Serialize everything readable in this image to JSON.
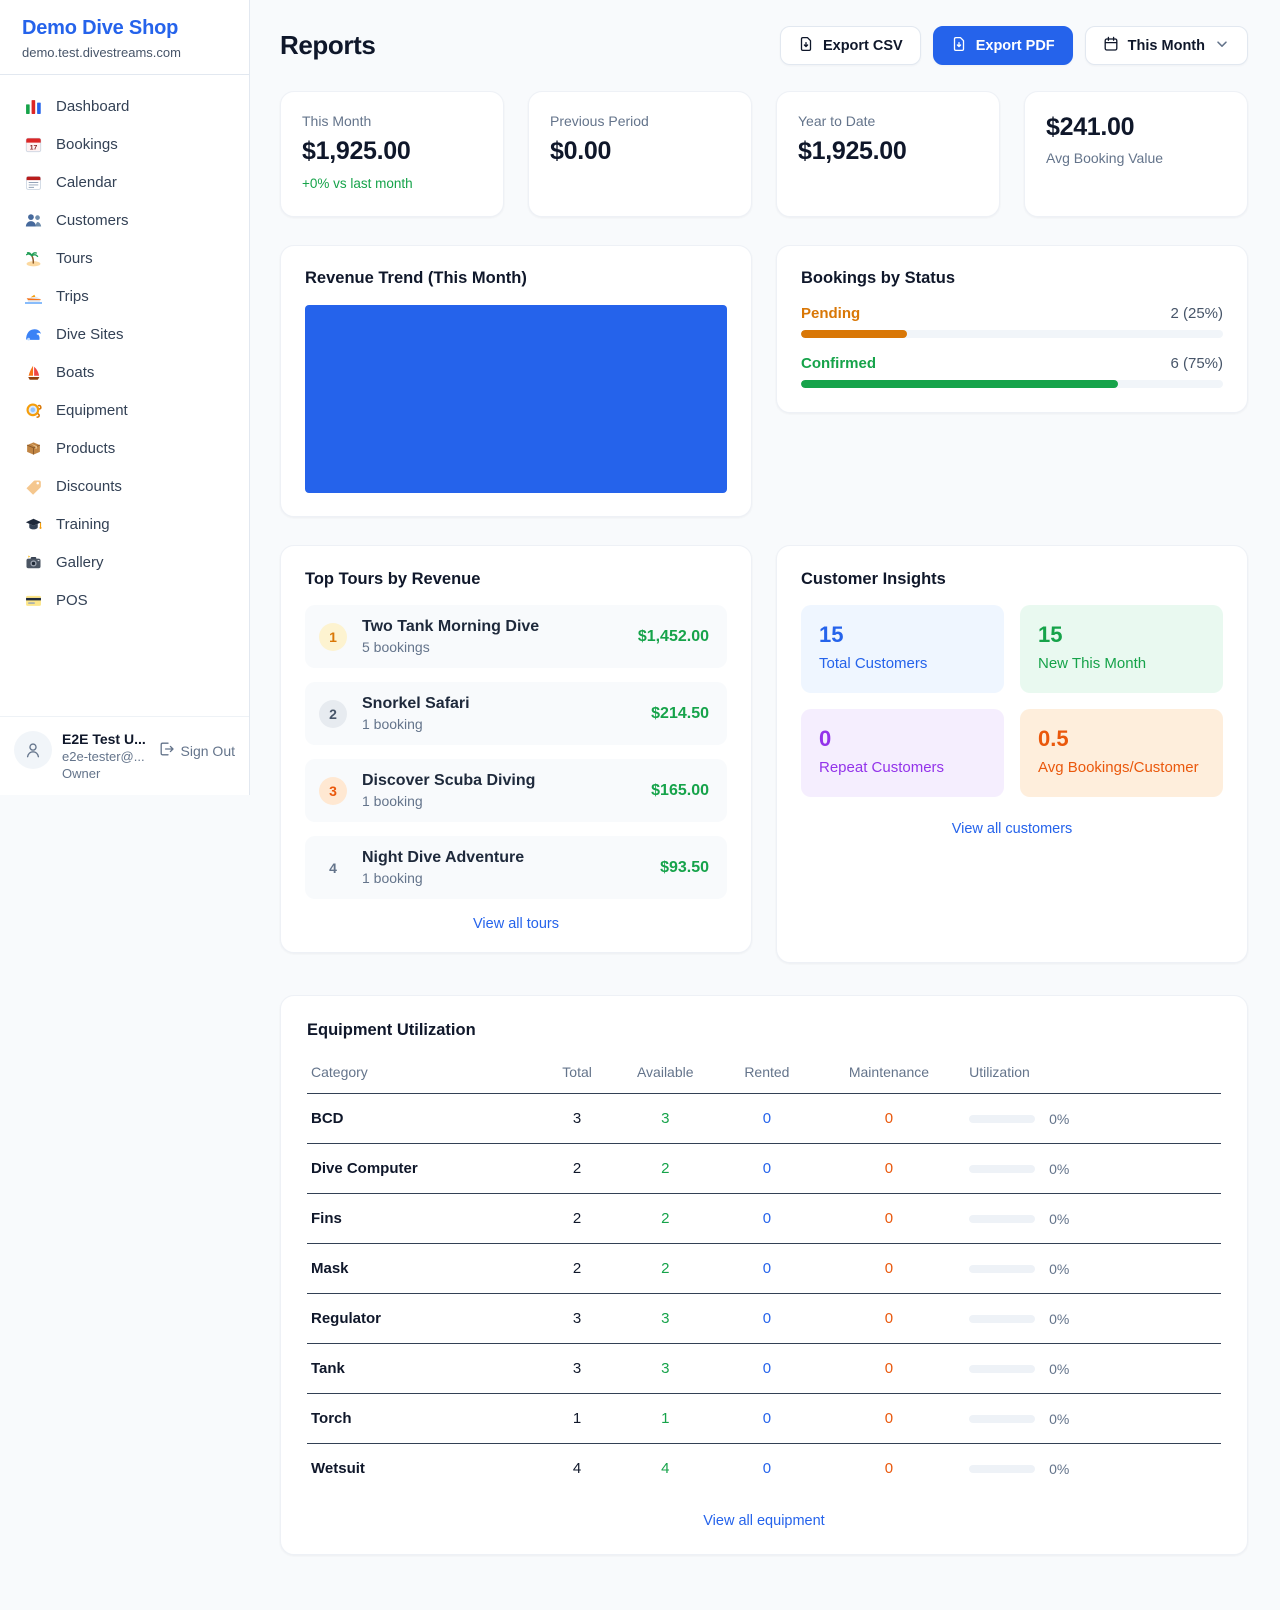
{
  "colors": {
    "brand_blue": "#2563eb",
    "green": "#16a34a",
    "amber": "#d97706",
    "orange": "#ea580c",
    "purple": "#9333ea",
    "chart_blue": "#2563eb",
    "text_dark": "#0f172a",
    "text_muted": "#64748b"
  },
  "sidebar": {
    "title": "Demo Dive Shop",
    "subtitle": "demo.test.divestreams.com",
    "items": [
      {
        "icon": "bar-chart",
        "label": "Dashboard"
      },
      {
        "icon": "calendar-date",
        "label": "Bookings"
      },
      {
        "icon": "tear-off-calendar",
        "label": "Calendar"
      },
      {
        "icon": "people",
        "label": "Customers"
      },
      {
        "icon": "palm-island",
        "label": "Tours"
      },
      {
        "icon": "speedboat",
        "label": "Trips"
      },
      {
        "icon": "wave",
        "label": "Dive Sites"
      },
      {
        "icon": "sailboat",
        "label": "Boats"
      },
      {
        "icon": "diving-mask",
        "label": "Equipment"
      },
      {
        "icon": "package",
        "label": "Products"
      },
      {
        "icon": "tag",
        "label": "Discounts"
      },
      {
        "icon": "graduation-cap",
        "label": "Training"
      },
      {
        "icon": "camera-flash",
        "label": "Gallery"
      },
      {
        "icon": "credit-card",
        "label": "POS"
      }
    ],
    "user": {
      "name": "E2E Test U...",
      "email": "e2e-tester@...",
      "role": "Owner",
      "sign_out": "Sign Out"
    }
  },
  "header": {
    "title": "Reports",
    "export_csv": "Export CSV",
    "export_pdf": "Export PDF",
    "period": "This Month"
  },
  "stats": [
    {
      "label": "This Month",
      "value": "$1,925.00",
      "delta": "+0% vs last month"
    },
    {
      "label": "Previous Period",
      "value": "$0.00"
    },
    {
      "label": "Year to Date",
      "value": "$1,925.00"
    },
    {
      "label": "Avg Booking Value",
      "value": "$241.00"
    }
  ],
  "revenue_trend": {
    "title": "Revenue Trend (This Month)",
    "chart_color": "#2563eb"
  },
  "bookings_by_status": {
    "title": "Bookings by Status",
    "rows": [
      {
        "label": "Pending",
        "display": "2 (25%)",
        "count": 2,
        "width": "25%"
      },
      {
        "label": "Confirmed",
        "display": "6 (75%)",
        "count": 6,
        "width": "75%"
      }
    ]
  },
  "top_tours": {
    "title": "Top Tours by Revenue",
    "items": [
      {
        "rank": "1",
        "name": "Two Tank Morning Dive",
        "bookings": "5 bookings",
        "revenue": "$1,452.00"
      },
      {
        "rank": "2",
        "name": "Snorkel Safari",
        "bookings": "1 booking",
        "revenue": "$214.50"
      },
      {
        "rank": "3",
        "name": "Discover Scuba Diving",
        "bookings": "1 booking",
        "revenue": "$165.00"
      },
      {
        "rank": "4",
        "name": "Night Dive Adventure",
        "bookings": "1 booking",
        "revenue": "$93.50"
      }
    ],
    "view_all": "View all tours"
  },
  "customer_insights": {
    "title": "Customer Insights",
    "cards": [
      {
        "value": "15",
        "label": "Total Customers"
      },
      {
        "value": "15",
        "label": "New This Month"
      },
      {
        "value": "0",
        "label": "Repeat Customers"
      },
      {
        "value": "0.5",
        "label": "Avg Bookings/Customer"
      }
    ],
    "view_all": "View all customers"
  },
  "equipment": {
    "title": "Equipment Utilization",
    "columns": [
      "Category",
      "Total",
      "Available",
      "Rented",
      "Maintenance",
      "Utilization"
    ],
    "rows": [
      {
        "category": "BCD",
        "total": "3",
        "available": "3",
        "rented": "0",
        "maintenance": "0",
        "utilization": "0%"
      },
      {
        "category": "Dive Computer",
        "total": "2",
        "available": "2",
        "rented": "0",
        "maintenance": "0",
        "utilization": "0%"
      },
      {
        "category": "Fins",
        "total": "2",
        "available": "2",
        "rented": "0",
        "maintenance": "0",
        "utilization": "0%"
      },
      {
        "category": "Mask",
        "total": "2",
        "available": "2",
        "rented": "0",
        "maintenance": "0",
        "utilization": "0%"
      },
      {
        "category": "Regulator",
        "total": "3",
        "available": "3",
        "rented": "0",
        "maintenance": "0",
        "utilization": "0%"
      },
      {
        "category": "Tank",
        "total": "3",
        "available": "3",
        "rented": "0",
        "maintenance": "0",
        "utilization": "0%"
      },
      {
        "category": "Torch",
        "total": "1",
        "available": "1",
        "rented": "0",
        "maintenance": "0",
        "utilization": "0%"
      },
      {
        "category": "Wetsuit",
        "total": "4",
        "available": "4",
        "rented": "0",
        "maintenance": "0",
        "utilization": "0%"
      }
    ],
    "view_all": "View all equipment"
  }
}
